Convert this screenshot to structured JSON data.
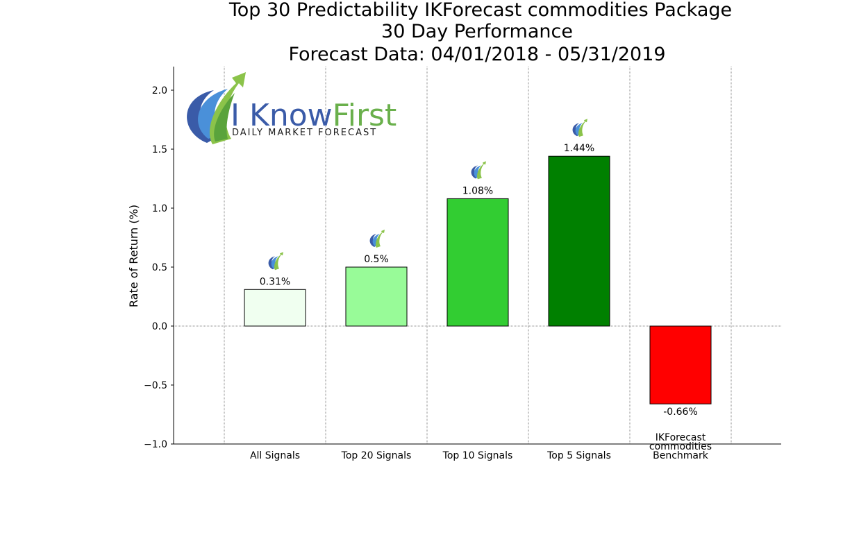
{
  "chart_data": {
    "type": "bar",
    "title": [
      "Top 30 Predictability IKForecast commodities Package",
      "30 Day Performance",
      "Forecast Data: 04/01/2018 - 05/31/2019"
    ],
    "ylabel": "Rate of Return (%)",
    "xlabel": "",
    "ylim": [
      -1.0,
      2.2
    ],
    "yticks": [
      2.0,
      1.5,
      1.0,
      0.5,
      0.0,
      -0.5,
      -1.0
    ],
    "ytick_labels": [
      "2.0",
      "1.5",
      "1.0",
      "0.5",
      "0.0",
      "−0.5",
      "−1.0"
    ],
    "categories": [
      [
        "All Signals"
      ],
      [
        "Top 20 Signals"
      ],
      [
        "Top 10 Signals"
      ],
      [
        "Top 5 Signals"
      ],
      [
        "IKForecast",
        "commodities",
        "Benchmark"
      ]
    ],
    "values": [
      0.31,
      0.5,
      1.08,
      1.44,
      -0.66
    ],
    "value_labels": [
      "0.31%",
      "0.5%",
      "1.08%",
      "1.44%",
      "-0.66%"
    ],
    "colors": [
      "#f0fff0",
      "#98fb98",
      "#32cd32",
      "#008000",
      "#ff0000"
    ],
    "grid": {
      "x": true,
      "y_zero_line": true
    }
  },
  "logo": {
    "main_left": "I Know",
    "main_right": "First",
    "tagline": "DAILY MARKET FORECAST",
    "main_left_color": "#3a5ba8",
    "main_right_color": "#6ab04c"
  }
}
